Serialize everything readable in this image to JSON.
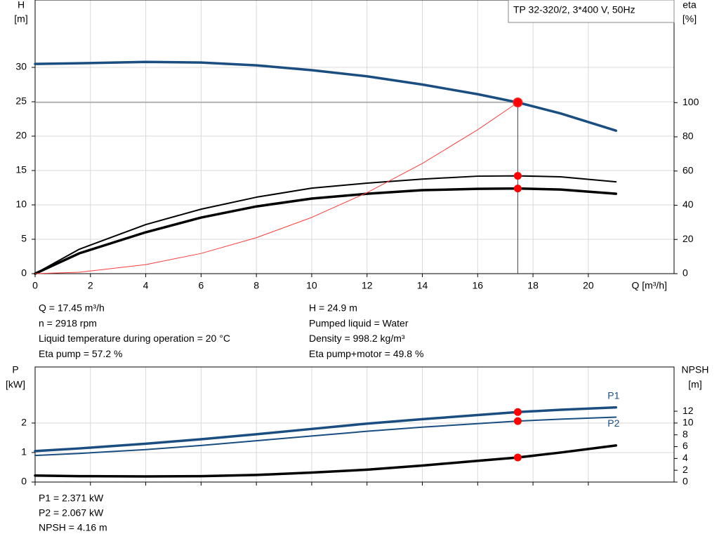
{
  "chart_data": [
    {
      "type": "line",
      "title": "TP 32-320/2, 3*400 V, 50Hz",
      "y_label": "H",
      "y_unit": "[m]",
      "y2_label": "eta",
      "y2_unit": "[%]",
      "x_label": "Q [m³/h]",
      "x": [
        0,
        1.6,
        4,
        6,
        8,
        10,
        12,
        14,
        16,
        17.45,
        19,
        21
      ],
      "xlim": [
        0,
        23.1
      ],
      "xticks": [
        0,
        2,
        4,
        6,
        8,
        10,
        12,
        14,
        16,
        18,
        20
      ],
      "ylim": [
        0,
        39.8
      ],
      "yticks": [
        0,
        5,
        10,
        15,
        20,
        25,
        30
      ],
      "y2lim": [
        0,
        160
      ],
      "y2ticks": [
        0,
        20,
        40,
        60,
        80,
        100
      ],
      "grid": true,
      "series": [
        {
          "color": "#1a4e80",
          "values": [
            30.5,
            30.6,
            30.8,
            30.7,
            30.3,
            29.6,
            28.7,
            27.5,
            26.1,
            24.9,
            23.3,
            20.8
          ]
        },
        {
          "color": "#000000",
          "axis": "y2",
          "values": [
            0,
            14.3,
            28.7,
            37.7,
            44.7,
            50,
            52.9,
            55.3,
            57,
            57.2,
            56.6,
            53.7
          ]
        },
        {
          "color": "#000000",
          "axis": "y2",
          "values": [
            0,
            11.9,
            24.2,
            32.8,
            39.3,
            43.9,
            46.7,
            48.8,
            49.6,
            49.8,
            49.2,
            46.7
          ]
        },
        {
          "color": "#ff3b3b",
          "values": [
            0,
            0.21,
            1.31,
            2.94,
            5.23,
            8.18,
            11.78,
            16.03,
            20.93,
            24.9,
            null,
            null
          ]
        }
      ],
      "operating_point": {
        "x": 17.45,
        "y": 24.9
      },
      "info_left": [
        "Q = 17.45 m³/h",
        "n = 2918 rpm",
        "Liquid temperature during operation = 20 °C",
        "Eta pump = 57.2 %"
      ],
      "info_right": [
        "H = 24.9 m",
        "Pumped liquid = Water",
        "Density = 998.2 kg/m³",
        "Eta pump+motor = 49.8 %"
      ]
    },
    {
      "type": "line",
      "y_label": "P",
      "y_unit": "[kW]",
      "y2_label": "NPSH",
      "y2_unit": "[m]",
      "x": [
        0,
        1.6,
        4,
        6,
        8,
        10,
        12,
        14,
        16,
        17.45,
        19,
        21
      ],
      "xlim": [
        0,
        23.1
      ],
      "xticks": [
        0,
        2,
        4,
        6,
        8,
        10,
        12,
        14,
        16,
        18,
        20
      ],
      "ylim": [
        0,
        3.9
      ],
      "yticks": [
        0,
        1,
        2
      ],
      "y2lim": [
        0,
        19.5
      ],
      "y2ticks": [
        0,
        2,
        4,
        6,
        8,
        10,
        12
      ],
      "grid": true,
      "series": [
        {
          "name": "P1",
          "color": "#1a4e80",
          "values": [
            1.05,
            1.14,
            1.3,
            1.45,
            1.62,
            1.8,
            1.98,
            2.13,
            2.27,
            2.371,
            2.45,
            2.53
          ]
        },
        {
          "name": "P2",
          "color": "#1a4e80",
          "values": [
            0.9,
            0.97,
            1.1,
            1.24,
            1.4,
            1.56,
            1.72,
            1.86,
            1.98,
            2.067,
            2.13,
            2.2
          ]
        },
        {
          "color": "#000000",
          "axis": "y2",
          "values": [
            1.1,
            1.0,
            0.95,
            1.0,
            1.2,
            1.6,
            2.1,
            2.8,
            3.6,
            4.16,
            5.0,
            6.2
          ]
        }
      ],
      "operating_x": 17.45,
      "info_left": [
        "P1 = 2.371 kW",
        "P2 = 2.067 kW",
        "NPSH = 4.16 m"
      ]
    }
  ]
}
